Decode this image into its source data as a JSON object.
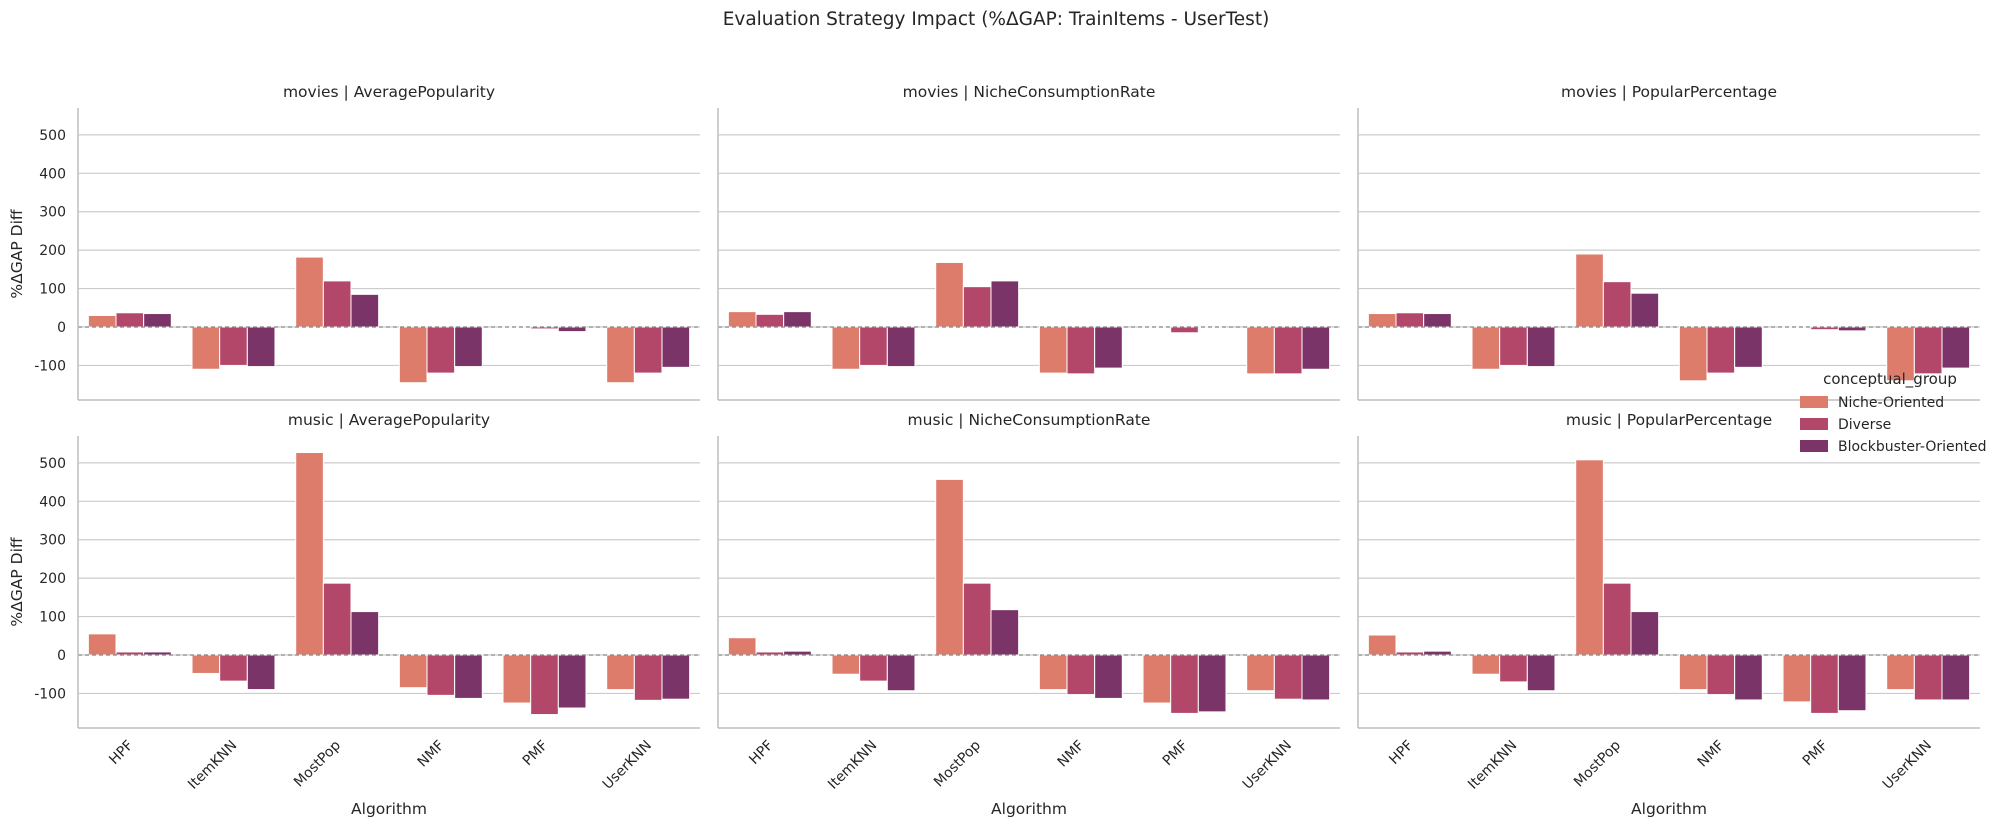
{
  "figure": {
    "title": "Evaluation Strategy Impact (%ΔGAP: TrainItems - UserTest)"
  },
  "legend": {
    "title": "conceptual_group",
    "placement": "right-center"
  },
  "chart_data": {
    "type": "bar",
    "layout": "facet-grid-2x3",
    "categories": [
      "HPF",
      "ItemKNN",
      "MostPop",
      "NMF",
      "PMF",
      "UserKNN"
    ],
    "xlabel": "Algorithm",
    "ylabel": "%ΔGAP Diff",
    "ylim": [
      -190,
      570
    ],
    "yticks": [
      -100,
      0,
      100,
      200,
      300,
      400,
      500
    ],
    "grid": "horizontal",
    "zero_line": "dashed",
    "series_names": [
      "Niche-Oriented",
      "Diverse",
      "Blockbuster-Oriented"
    ],
    "series_colors": [
      "#dd7c6a",
      "#b3476a",
      "#7a3468"
    ],
    "panels": [
      {
        "title": "movies | AveragePopularity",
        "series": [
          {
            "name": "Niche-Oriented",
            "values": [
              30,
              -110,
              182,
              -145,
              0,
              -145
            ]
          },
          {
            "name": "Diverse",
            "values": [
              37,
              -100,
              120,
              -120,
              -5,
              -120
            ]
          },
          {
            "name": "Blockbuster-Oriented",
            "values": [
              35,
              -103,
              85,
              -103,
              -12,
              -105
            ]
          }
        ]
      },
      {
        "title": "movies | NicheConsumptionRate",
        "series": [
          {
            "name": "Niche-Oriented",
            "values": [
              40,
              -110,
              168,
              -120,
              0,
              -122
            ]
          },
          {
            "name": "Diverse",
            "values": [
              33,
              -100,
              105,
              -122,
              -15,
              -122
            ]
          },
          {
            "name": "Blockbuster-Oriented",
            "values": [
              40,
              -103,
              120,
              -107,
              0,
              -110
            ]
          }
        ]
      },
      {
        "title": "movies | PopularPercentage",
        "series": [
          {
            "name": "Niche-Oriented",
            "values": [
              35,
              -110,
              190,
              -140,
              0,
              -140
            ]
          },
          {
            "name": "Diverse",
            "values": [
              37,
              -100,
              118,
              -120,
              -7,
              -122
            ]
          },
          {
            "name": "Blockbuster-Oriented",
            "values": [
              35,
              -103,
              88,
              -105,
              -10,
              -107
            ]
          }
        ]
      },
      {
        "title": "music | AveragePopularity",
        "series": [
          {
            "name": "Niche-Oriented",
            "values": [
              55,
              -48,
              527,
              -85,
              -125,
              -90
            ]
          },
          {
            "name": "Diverse",
            "values": [
              8,
              -68,
              187,
              -105,
              -155,
              -118
            ]
          },
          {
            "name": "Blockbuster-Oriented",
            "values": [
              8,
              -90,
              113,
              -113,
              -138,
              -115
            ]
          }
        ]
      },
      {
        "title": "music | NicheConsumptionRate",
        "series": [
          {
            "name": "Niche-Oriented",
            "values": [
              45,
              -50,
              457,
              -90,
              -125,
              -93
            ]
          },
          {
            "name": "Diverse",
            "values": [
              8,
              -68,
              187,
              -103,
              -152,
              -115
            ]
          },
          {
            "name": "Blockbuster-Oriented",
            "values": [
              10,
              -93,
              118,
              -113,
              -148,
              -117
            ]
          }
        ]
      },
      {
        "title": "music | PopularPercentage",
        "series": [
          {
            "name": "Niche-Oriented",
            "values": [
              52,
              -50,
              508,
              -90,
              -122,
              -90
            ]
          },
          {
            "name": "Diverse",
            "values": [
              8,
              -70,
              187,
              -103,
              -152,
              -117
            ]
          },
          {
            "name": "Blockbuster-Oriented",
            "values": [
              10,
              -93,
              113,
              -117,
              -145,
              -117
            ]
          }
        ]
      }
    ]
  }
}
